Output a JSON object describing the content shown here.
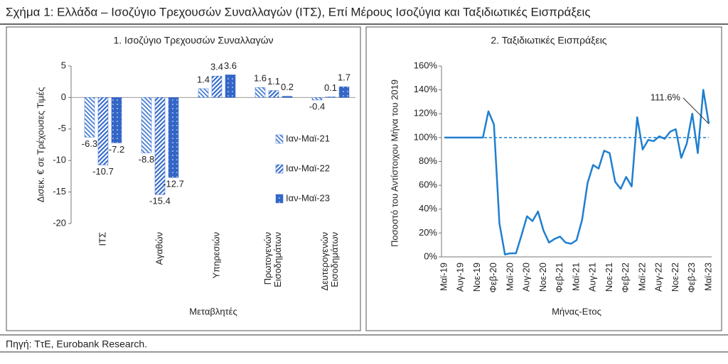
{
  "title": "Σχήμα 1: Ελλάδα – Ισοζύγιο Τρεχουσών Συναλλαγών (ΙΤΣ), Επί Μέρους Ισοζύγια και Ταξιδιωτικές Εισπράξεις",
  "source": "Πηγή: ΤτΕ, Eurobank Research.",
  "chart_data": [
    {
      "type": "bar",
      "title": "1. Ισοζύγιο Τρεχουσών Συναλλαγών",
      "y_label": "Δισεκ. € σε Τρέχουσες Τιμές",
      "x_label": "Μεταβλητές",
      "categories": [
        "ΙΤΣ",
        "Αγαθών",
        "Υπηρεσιών",
        "Πρωτογενών Εισοδημάτων",
        "Δευτερογενών Εισοδημάτων"
      ],
      "series": [
        {
          "name": "Ιαν-Μαϊ-21",
          "color": "#4a7fd4",
          "pattern": "hatch-light",
          "values": [
            -6.3,
            -8.8,
            1.4,
            1.6,
            -0.4
          ]
        },
        {
          "name": "Ιαν-Μαϊ-22",
          "color": "#3a6fcc",
          "pattern": "hatch",
          "values": [
            -10.7,
            -15.4,
            3.4,
            1.1,
            0.1
          ]
        },
        {
          "name": "Ιαν-Μαϊ-23",
          "color": "#3466c8",
          "pattern": "dots",
          "values": [
            -7.2,
            -12.7,
            3.6,
            0.2,
            1.7
          ]
        }
      ],
      "ylim": [
        -20,
        5
      ],
      "yticks": [
        -20,
        -15,
        -10,
        -5,
        0,
        5
      ],
      "legend": "right"
    },
    {
      "type": "line",
      "title": "2. Ταξιδιωτικές Εισπράξεις",
      "y_label": "Ποσοστό του Αντίστοιχου Μήνα του 2019",
      "x_label": "Μήνας-Ετος",
      "categories": [
        "Μαϊ-19",
        null,
        null,
        "Αυγ-19",
        null,
        null,
        "Νοε-19",
        null,
        null,
        "Φεβ-20",
        null,
        null,
        "Μαϊ-20",
        null,
        null,
        "Αυγ-20",
        null,
        null,
        "Νοε-20",
        null,
        null,
        "Φεβ-21",
        null,
        null,
        "Μαϊ-21",
        null,
        null,
        "Αυγ-21",
        null,
        null,
        "Νοε-21",
        null,
        null,
        "Φεβ-22",
        null,
        null,
        "Μαϊ-22",
        null,
        null,
        "Αυγ-22",
        null,
        null,
        "Νοε-22",
        null,
        null,
        "Φεβ-23",
        null,
        null,
        "Μαϊ-23"
      ],
      "values": [
        100,
        100,
        100,
        100,
        100,
        100,
        100,
        100,
        122,
        111,
        28,
        2,
        3,
        3,
        18,
        34,
        30,
        38,
        22,
        12,
        15,
        17,
        12,
        11,
        14,
        31,
        62,
        77,
        74,
        89,
        87,
        63,
        57,
        67,
        59,
        117,
        90,
        98,
        97,
        101,
        99,
        105,
        107,
        83,
        95,
        120,
        87,
        140,
        111.6
      ],
      "value_labels": [
        null,
        null,
        null,
        null,
        null,
        null,
        null,
        null,
        null,
        null,
        null,
        null,
        null,
        null,
        null,
        null,
        null,
        null,
        null,
        null,
        null,
        null,
        null,
        null,
        null,
        null,
        null,
        null,
        null,
        null,
        null,
        null,
        null,
        null,
        null,
        null,
        null,
        null,
        null,
        null,
        null,
        null,
        null,
        null,
        null,
        null,
        null,
        null,
        "111.6%"
      ],
      "color": "#1f7fd0",
      "hline": 100,
      "ylim": [
        0,
        160
      ],
      "yticks": [
        {
          "value": 0,
          "label": "0%"
        },
        {
          "value": 20,
          "label": "20%"
        },
        {
          "value": 40,
          "label": "40%"
        },
        {
          "value": 60,
          "label": "60%"
        },
        {
          "value": 80,
          "label": "80%"
        },
        {
          "value": 100,
          "label": "100%"
        },
        {
          "value": 120,
          "label": "120%"
        },
        {
          "value": 140,
          "label": "140%"
        },
        {
          "value": 160,
          "label": "160%"
        }
      ]
    }
  ]
}
